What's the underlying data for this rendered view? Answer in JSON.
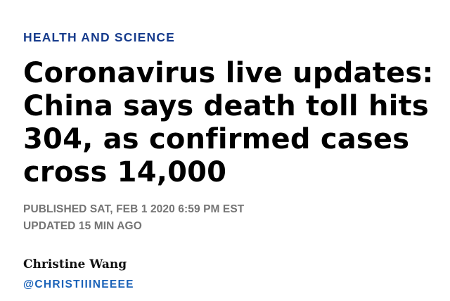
{
  "article": {
    "section": "HEALTH AND SCIENCE",
    "headline_lines": [
      "Coronavirus live updates:",
      "China says death toll hits",
      "304, as confirmed cases",
      "cross 14,000"
    ],
    "published": "PUBLISHED SAT, FEB 1 2020 6:59 PM EST",
    "updated": "UPDATED 15 MIN AGO",
    "author": {
      "name": "Christine Wang",
      "handle": "@CHRISTIIINEEEE"
    }
  },
  "colors": {
    "section": "#163b8c",
    "headline": "#000000",
    "timestamp": "#747474",
    "handle": "#1a62b8"
  }
}
